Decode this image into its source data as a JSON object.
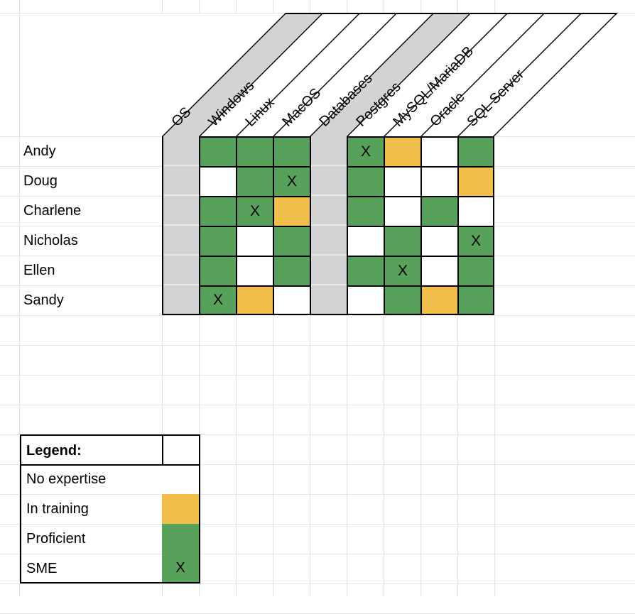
{
  "app": {
    "description_title": "Skills matrix spreadsheet"
  },
  "colors": {
    "proficient_green": "#57A15A",
    "training_yellow": "#F0BE49",
    "group_band_gray": "#D3D3D3",
    "gridline_gray": "#E3E3E3",
    "border_black": "#000000"
  },
  "matrix": {
    "columns": [
      {
        "label": "OS",
        "type": "group"
      },
      {
        "label": "Windows",
        "type": "skill"
      },
      {
        "label": "Linux",
        "type": "skill"
      },
      {
        "label": "MacOS",
        "type": "skill"
      },
      {
        "label": "Databases",
        "type": "group"
      },
      {
        "label": "Postgres",
        "type": "skill"
      },
      {
        "label": "MySQL/MariaDB",
        "type": "skill"
      },
      {
        "label": "Oracle",
        "type": "skill"
      },
      {
        "label": "SQL Server",
        "type": "skill"
      }
    ],
    "sme_mark": "X",
    "rows": [
      {
        "name": "Andy",
        "cells": [
          "",
          "proficient",
          "proficient",
          "proficient",
          "",
          "sme",
          "training",
          "none",
          "proficient"
        ]
      },
      {
        "name": "Doug",
        "cells": [
          "",
          "none",
          "proficient",
          "sme",
          "",
          "proficient",
          "none",
          "none",
          "training"
        ]
      },
      {
        "name": "Charlene",
        "cells": [
          "",
          "proficient",
          "sme",
          "training",
          "",
          "proficient",
          "none",
          "proficient",
          "none"
        ]
      },
      {
        "name": "Nicholas",
        "cells": [
          "",
          "proficient",
          "none",
          "proficient",
          "",
          "none",
          "proficient",
          "none",
          "sme"
        ]
      },
      {
        "name": "Ellen",
        "cells": [
          "",
          "proficient",
          "none",
          "proficient",
          "",
          "proficient",
          "sme",
          "none",
          "proficient"
        ]
      },
      {
        "name": "Sandy",
        "cells": [
          "",
          "sme",
          "training",
          "none",
          "",
          "none",
          "proficient",
          "training",
          "proficient"
        ]
      }
    ]
  },
  "legend": {
    "title": "Legend:",
    "items": [
      {
        "label": "No expertise",
        "state": "none",
        "mark": ""
      },
      {
        "label": "In training",
        "state": "training",
        "mark": ""
      },
      {
        "label": "Proficient",
        "state": "proficient",
        "mark": ""
      },
      {
        "label": "SME",
        "state": "sme",
        "mark": "X"
      }
    ]
  }
}
